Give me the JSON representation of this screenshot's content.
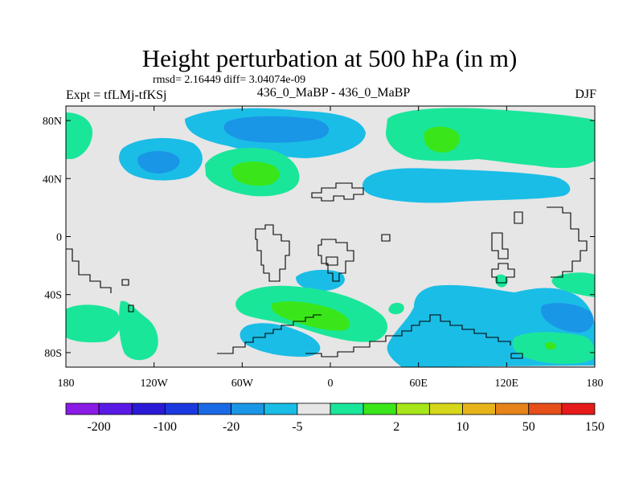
{
  "title": "Height perturbation at 500 hPa (in m)",
  "stats": "rmsd= 2.16449 diff= 3.04074e-09",
  "experiment": "Expt = tfLMj-tfKSj",
  "center_label": "436_0_MaBP - 436_0_MaBP",
  "season": "DJF",
  "map": {
    "lon_range": [
      -180,
      180
    ],
    "lat_range": [
      -90,
      90
    ],
    "background": "#e6e6e6",
    "coastline_color": "#000000",
    "lat_ticks": [
      {
        "lat": 80,
        "label": "80N"
      },
      {
        "lat": 40,
        "label": "40N"
      },
      {
        "lat": 0,
        "label": "0"
      },
      {
        "lat": -40,
        "label": "40S"
      },
      {
        "lat": -80,
        "label": "80S"
      }
    ],
    "lon_ticks": [
      {
        "lon": -180,
        "label": "180"
      },
      {
        "lon": -120,
        "label": "120W"
      },
      {
        "lon": -60,
        "label": "60W"
      },
      {
        "lon": 0,
        "label": "0"
      },
      {
        "lon": 60,
        "label": "60E"
      },
      {
        "lon": 120,
        "label": "120E"
      },
      {
        "lon": 180,
        "label": "180"
      }
    ]
  },
  "colorbar": {
    "colors": [
      "#8a1ae6",
      "#5a1ae6",
      "#2a1ad6",
      "#1a3ae0",
      "#1a6ae6",
      "#1a96e6",
      "#1abde6",
      "#e6e6e6",
      "#1ae69a",
      "#3ae61a",
      "#a6e61a",
      "#d6d61a",
      "#e6b41a",
      "#e6841a",
      "#e64e1a",
      "#e61a1a"
    ],
    "labels": [
      "-200",
      "-100",
      "-20",
      "-5",
      "2",
      "10",
      "50",
      "150"
    ]
  },
  "fields": {
    "light_blue": "#1abde6",
    "medium_blue": "#1a96e6",
    "green": "#1ae69a",
    "bright_green": "#3ae61a"
  }
}
